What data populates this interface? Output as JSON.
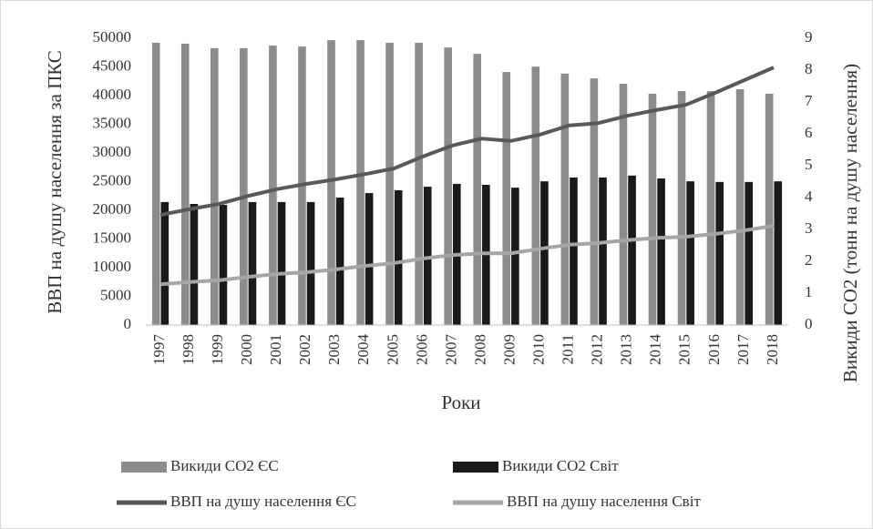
{
  "chart_data": {
    "type": "bar",
    "x_label": "Роки",
    "y_label": "ВВП на душу населення за ПКС",
    "y2_label": "Викиди СО2 (тонн на душу населення)",
    "categories": [
      "1997",
      "1998",
      "1999",
      "2000",
      "2001",
      "2002",
      "2003",
      "2004",
      "2005",
      "2006",
      "2007",
      "2008",
      "2009",
      "2010",
      "2011",
      "2012",
      "2013",
      "2014",
      "2015",
      "2016",
      "2017",
      "2018"
    ],
    "series": [
      {
        "name": "Викиди СО2 ЄС",
        "type": "bar",
        "axis": "y2",
        "color": "#8c8c8c",
        "values": [
          8.86,
          8.83,
          8.69,
          8.69,
          8.77,
          8.74,
          8.94,
          8.94,
          8.86,
          8.86,
          8.71,
          8.51,
          7.94,
          8.11,
          7.89,
          7.74,
          7.57,
          7.26,
          7.34,
          7.34,
          7.4,
          7.26
        ]
      },
      {
        "name": "Викиди СО2 Світ",
        "type": "bar",
        "axis": "y2",
        "color": "#1a1a1a",
        "values": [
          3.86,
          3.8,
          3.77,
          3.86,
          3.86,
          3.86,
          4.0,
          4.14,
          4.23,
          4.34,
          4.43,
          4.4,
          4.31,
          4.51,
          4.63,
          4.63,
          4.69,
          4.6,
          4.51,
          4.49,
          4.49,
          4.51
        ]
      },
      {
        "name": "ВВП на душу населення ЄС",
        "type": "line",
        "axis": "y",
        "color": "#595959",
        "values": [
          19200,
          20200,
          21100,
          22500,
          23700,
          24600,
          25400,
          26300,
          27300,
          29400,
          31300,
          32500,
          32100,
          33200,
          34800,
          35200,
          36500,
          37500,
          38400,
          40500,
          42700,
          44900
        ]
      },
      {
        "name": "ВВП на душу населення Світ",
        "type": "line",
        "axis": "y",
        "color": "#a6a6a6",
        "values": [
          7100,
          7500,
          7800,
          8400,
          8900,
          9200,
          9700,
          10300,
          10800,
          11600,
          12200,
          12500,
          12500,
          13300,
          14000,
          14300,
          14800,
          15200,
          15400,
          15900,
          16500,
          17300
        ]
      }
    ],
    "ylim": [
      0,
      50000
    ],
    "yticks": [
      0,
      5000,
      10000,
      15000,
      20000,
      25000,
      30000,
      35000,
      40000,
      45000,
      50000
    ],
    "y2lim": [
      0,
      9
    ],
    "y2ticks": [
      0,
      1,
      2,
      3,
      4,
      5,
      6,
      7,
      8,
      9
    ],
    "grid": false,
    "legend": "bottom"
  }
}
